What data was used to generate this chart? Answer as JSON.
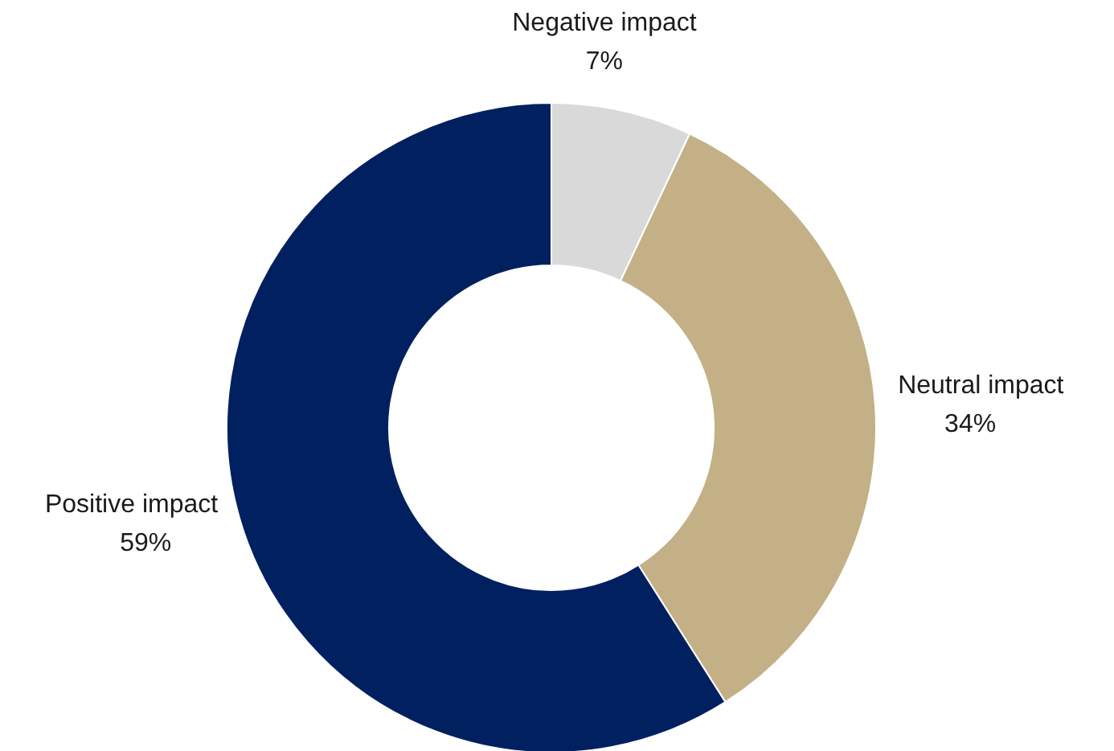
{
  "chart_data": {
    "type": "donut",
    "categories": [
      "Negative impact",
      "Neutral impact",
      "Positive impact"
    ],
    "values": [
      7,
      34,
      59
    ],
    "colors": [
      "#d9d9d9",
      "#c4b086",
      "#002060"
    ],
    "value_labels": [
      "7%",
      "34%",
      "59%"
    ]
  }
}
